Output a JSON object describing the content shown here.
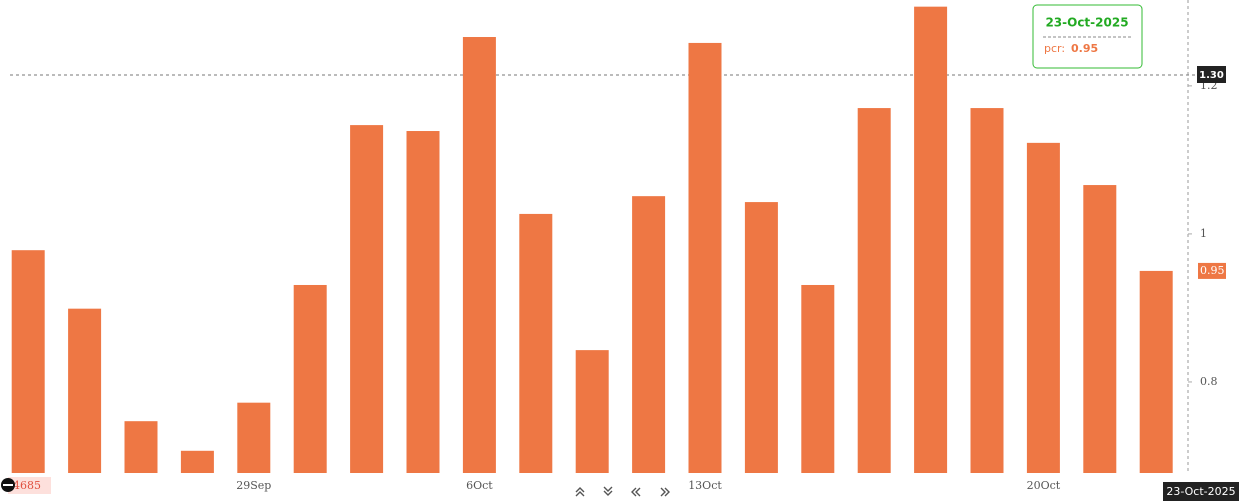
{
  "chart_data": {
    "type": "bar",
    "categories": [
      null,
      null,
      null,
      null,
      "29Sep",
      null,
      null,
      null,
      "6Oct",
      null,
      null,
      null,
      "13Oct",
      null,
      null,
      null,
      null,
      null,
      "20Oct",
      null,
      null
    ],
    "values": [
      0.978,
      0.899,
      0.747,
      0.707,
      0.772,
      0.931,
      1.147,
      1.139,
      1.266,
      1.027,
      0.843,
      1.051,
      1.258,
      1.043,
      0.931,
      1.17,
      1.307,
      1.17,
      1.123,
      1.066,
      0.95
    ],
    "color": "#ee7744",
    "ylim": [
      0.677,
      1.316
    ],
    "yticks": [
      0.8,
      1,
      1.2
    ],
    "crosshair_label": "1.30",
    "price_label": "4685",
    "cursor_date": "23-Oct-2025",
    "tooltip_name": "pcr:"
  }
}
